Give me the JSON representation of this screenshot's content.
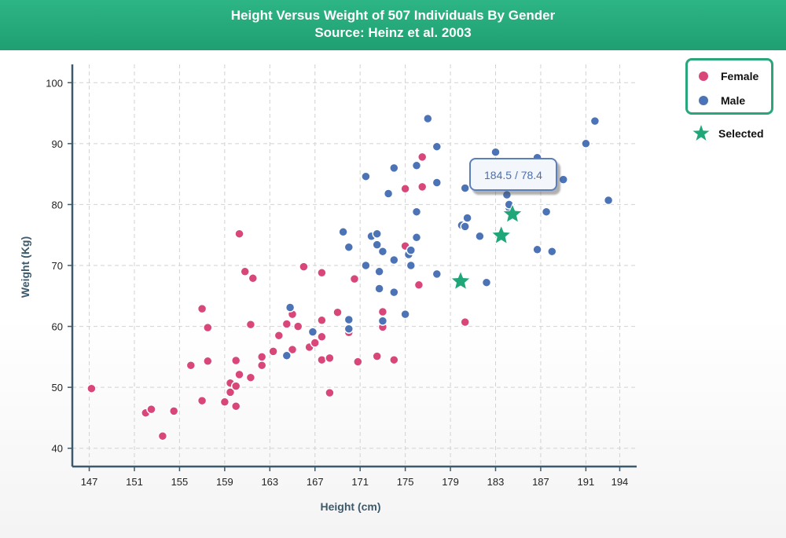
{
  "header": {
    "title_line1": "Height Versus Weight of 507 Individuals By Gender",
    "title_line2": "Source: Heinz et al. 2003"
  },
  "legend": {
    "female_label": "Female",
    "male_label": "Male",
    "selected_label": "Selected"
  },
  "tooltip": {
    "text": "184.5 / 78.4"
  },
  "colors": {
    "female": "#d9467a",
    "male": "#4c73b6",
    "selected": "#1fa77a",
    "accent": "#2aa67a"
  },
  "chart_data": {
    "type": "scatter",
    "title": "Height Versus Weight of 507 Individuals By Gender",
    "subtitle": "Source: Heinz et al. 2003",
    "xlabel": "Height (cm)",
    "ylabel": "Weight (Kg)",
    "xlim": [
      145.5,
      195.5
    ],
    "ylim": [
      37,
      103
    ],
    "xticks": [
      147,
      151,
      155,
      159,
      163,
      167,
      171,
      175,
      179,
      183,
      187,
      191,
      194
    ],
    "yticks": [
      40,
      50,
      60,
      70,
      80,
      90,
      100
    ],
    "grid": true,
    "legend_position": "top-right",
    "series": [
      {
        "name": "Female",
        "points": [
          [
            147.2,
            49.8
          ],
          [
            152.0,
            45.8
          ],
          [
            152.5,
            46.4
          ],
          [
            153.5,
            42.0
          ],
          [
            154.5,
            46.1
          ],
          [
            156.0,
            53.6
          ],
          [
            157.0,
            47.8
          ],
          [
            157.0,
            62.9
          ],
          [
            157.5,
            59.8
          ],
          [
            157.5,
            54.3
          ],
          [
            159.0,
            47.6
          ],
          [
            159.5,
            50.7
          ],
          [
            159.5,
            49.2
          ],
          [
            160.0,
            50.2
          ],
          [
            160.0,
            54.4
          ],
          [
            160.0,
            46.9
          ],
          [
            160.3,
            52.1
          ],
          [
            160.3,
            75.2
          ],
          [
            160.8,
            69.0
          ],
          [
            161.3,
            51.6
          ],
          [
            161.3,
            60.3
          ],
          [
            161.5,
            67.9
          ],
          [
            162.3,
            55.0
          ],
          [
            162.3,
            53.6
          ],
          [
            163.3,
            55.9
          ],
          [
            163.8,
            58.5
          ],
          [
            164.5,
            60.4
          ],
          [
            165.0,
            62.0
          ],
          [
            165.0,
            56.2
          ],
          [
            165.5,
            60.0
          ],
          [
            166.0,
            69.8
          ],
          [
            166.5,
            56.6
          ],
          [
            167.0,
            57.3
          ],
          [
            167.6,
            54.5
          ],
          [
            167.6,
            58.3
          ],
          [
            167.6,
            61.0
          ],
          [
            167.6,
            68.8
          ],
          [
            168.3,
            54.8
          ],
          [
            168.3,
            49.1
          ],
          [
            169.0,
            62.3
          ],
          [
            170.0,
            73.0
          ],
          [
            170.0,
            59.0
          ],
          [
            170.5,
            67.8
          ],
          [
            170.8,
            54.2
          ],
          [
            172.5,
            55.1
          ],
          [
            173.0,
            62.4
          ],
          [
            173.0,
            59.9
          ],
          [
            174.0,
            54.5
          ],
          [
            175.0,
            73.2
          ],
          [
            175.0,
            82.6
          ],
          [
            176.2,
            66.8
          ],
          [
            176.5,
            82.9
          ],
          [
            176.5,
            87.8
          ],
          [
            180.3,
            60.7
          ]
        ]
      },
      {
        "name": "Male",
        "points": [
          [
            164.5,
            55.2
          ],
          [
            164.8,
            63.1
          ],
          [
            166.8,
            59.1
          ],
          [
            169.5,
            75.5
          ],
          [
            170.0,
            61.1
          ],
          [
            170.0,
            59.6
          ],
          [
            170.0,
            73.0
          ],
          [
            171.5,
            70.0
          ],
          [
            171.5,
            84.6
          ],
          [
            172.0,
            74.8
          ],
          [
            172.5,
            75.2
          ],
          [
            172.5,
            73.4
          ],
          [
            172.7,
            66.2
          ],
          [
            172.7,
            69.0
          ],
          [
            173.0,
            60.9
          ],
          [
            173.0,
            72.3
          ],
          [
            173.5,
            81.8
          ],
          [
            174.0,
            86.0
          ],
          [
            174.0,
            70.9
          ],
          [
            174.0,
            65.6
          ],
          [
            175.0,
            62.0
          ],
          [
            175.3,
            71.8
          ],
          [
            175.5,
            70.0
          ],
          [
            175.5,
            72.5
          ],
          [
            176.0,
            86.2
          ],
          [
            176.0,
            86.4
          ],
          [
            176.0,
            78.8
          ],
          [
            176.0,
            74.6
          ],
          [
            177.0,
            94.1
          ],
          [
            177.8,
            89.5
          ],
          [
            177.8,
            83.6
          ],
          [
            177.8,
            68.6
          ],
          [
            180.0,
            76.6
          ],
          [
            180.3,
            76.4
          ],
          [
            180.3,
            82.7
          ],
          [
            180.5,
            77.8
          ],
          [
            181.6,
            74.8
          ],
          [
            182.2,
            67.2
          ],
          [
            183.0,
            88.6
          ],
          [
            184.0,
            81.6
          ],
          [
            184.2,
            79.5
          ],
          [
            184.2,
            80.0
          ],
          [
            184.5,
            78.4
          ],
          [
            186.7,
            87.7
          ],
          [
            186.7,
            72.6
          ],
          [
            187.5,
            78.8
          ],
          [
            188.0,
            84.1
          ],
          [
            188.0,
            72.3
          ],
          [
            189.0,
            84.1
          ],
          [
            191.0,
            90.0
          ],
          [
            191.8,
            93.7
          ],
          [
            193.0,
            80.7
          ]
        ]
      },
      {
        "name": "Selected",
        "points": [
          [
            179.9,
            67.4
          ],
          [
            183.5,
            74.9
          ],
          [
            184.5,
            78.4
          ]
        ]
      }
    ]
  }
}
